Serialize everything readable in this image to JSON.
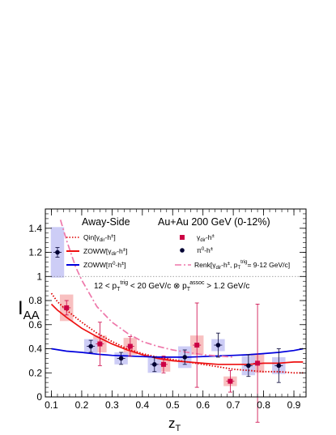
{
  "chart_data": {
    "type": "scatter",
    "xlabel": "z",
    "xlabel_sub": "T",
    "ylabel": "I",
    "ylabel_sub": "AA",
    "xlim": [
      0.08,
      0.94
    ],
    "ylim": [
      0,
      1.56
    ],
    "x_ticks": [
      "0.1",
      "0.2",
      "0.3",
      "0.4",
      "0.5",
      "0.6",
      "0.7",
      "0.8",
      "0.9"
    ],
    "y_ticks": [
      "0",
      "0.2",
      "0.4",
      "0.6",
      "0.8",
      "1",
      "1.2",
      "1.4"
    ],
    "reference_line": 1.0,
    "annotations": {
      "away_side": "Away-Side",
      "system": "Au+Au 200 GeV (0-12%)",
      "cut": "12 < p_T^trig < 20 GeV/c ⊗ p_T^assoc > 1.2 GeV/c"
    },
    "legend": {
      "qin": "Qin[γ_dir-h^±]",
      "zoww_gamma": "ZOWW[γ_dir-h^±]",
      "zoww_pi0": "ZOWW[π^0-h^±]",
      "renk": "Renk[γ_dir-h^±, p_T^trig= 9-12 GeV/c]",
      "gamma_data": "γ_dir-h^±",
      "pi0_data": "π^0-h^±"
    },
    "series": [
      {
        "name": "γ_dir-h^±",
        "color": "#cc0044",
        "box_color": "#f7b9b9",
        "marker": "square",
        "points": [
          {
            "x": 0.15,
            "y": 0.74,
            "stat": 0.06,
            "sys": 0.11
          },
          {
            "x": 0.26,
            "y": 0.44,
            "stat": 0.18,
            "sys": 0.07
          },
          {
            "x": 0.36,
            "y": 0.42,
            "stat": 0.08,
            "sys": 0.07
          },
          {
            "x": 0.47,
            "y": 0.27,
            "stat": 0.07,
            "sys": 0.06
          },
          {
            "x": 0.58,
            "y": 0.43,
            "stat": 0.35,
            "sys": 0.08
          },
          {
            "x": 0.69,
            "y": 0.13,
            "stat": 0.09,
            "sys": 0.04
          },
          {
            "x": 0.78,
            "y": 0.28,
            "stat": 0.49,
            "sys": 0.08
          }
        ]
      },
      {
        "name": "π^0-h^±",
        "color": "#000033",
        "box_color": "#c8c8f5",
        "marker": "circle",
        "points": [
          {
            "x": 0.12,
            "y": 1.2,
            "stat": 0.04,
            "sys": 0.21
          },
          {
            "x": 0.23,
            "y": 0.42,
            "stat": 0.05,
            "sys": 0.06
          },
          {
            "x": 0.33,
            "y": 0.32,
            "stat": 0.05,
            "sys": 0.05
          },
          {
            "x": 0.44,
            "y": 0.27,
            "stat": 0.06,
            "sys": 0.07
          },
          {
            "x": 0.54,
            "y": 0.33,
            "stat": 0.06,
            "sys": 0.09
          },
          {
            "x": 0.65,
            "y": 0.43,
            "stat": 0.1,
            "sys": 0.05
          },
          {
            "x": 0.75,
            "y": 0.26,
            "stat": 0.09,
            "sys": 0.08
          },
          {
            "x": 0.85,
            "y": 0.26,
            "stat": 0.14,
            "sys": 0.07
          }
        ]
      }
    ],
    "curves": [
      {
        "name": "Qin[γ_dir-h^±]",
        "color": "#dd0000",
        "style": "dotted",
        "x": [
          0.1,
          0.12,
          0.15,
          0.2,
          0.25,
          0.3,
          0.35,
          0.4,
          0.45,
          0.5,
          0.55,
          0.6,
          0.65,
          0.7,
          0.75,
          0.8,
          0.85,
          0.9,
          0.93
        ],
        "y": [
          0.86,
          0.79,
          0.72,
          0.62,
          0.53,
          0.46,
          0.4,
          0.36,
          0.33,
          0.31,
          0.29,
          0.27,
          0.25,
          0.23,
          0.22,
          0.21,
          0.21,
          0.2,
          0.2
        ]
      },
      {
        "name": "ZOWW[γ_dir-h^±]",
        "color": "#ee1111",
        "style": "solid",
        "x": [
          0.1,
          0.12,
          0.15,
          0.2,
          0.25,
          0.3,
          0.35,
          0.4,
          0.45,
          0.5,
          0.55,
          0.6,
          0.65,
          0.7,
          0.75,
          0.8,
          0.85,
          0.9,
          0.93
        ],
        "y": [
          0.77,
          0.72,
          0.66,
          0.57,
          0.5,
          0.44,
          0.39,
          0.35,
          0.32,
          0.3,
          0.29,
          0.28,
          0.27,
          0.27,
          0.27,
          0.28,
          0.28,
          0.29,
          0.29
        ]
      },
      {
        "name": "ZOWW[π^0-h^±]",
        "color": "#0000dd",
        "style": "solid",
        "x": [
          0.1,
          0.15,
          0.2,
          0.25,
          0.3,
          0.35,
          0.4,
          0.45,
          0.5,
          0.55,
          0.6,
          0.65,
          0.7,
          0.75,
          0.8,
          0.85,
          0.9,
          0.93
        ],
        "y": [
          0.4,
          0.38,
          0.37,
          0.355,
          0.345,
          0.34,
          0.335,
          0.33,
          0.33,
          0.33,
          0.335,
          0.34,
          0.345,
          0.35,
          0.36,
          0.37,
          0.385,
          0.4
        ]
      },
      {
        "name": "Renk[γ_dir-h^±, p_T^trig= 9-12 GeV/c]",
        "color": "#ee77aa",
        "style": "dashdot",
        "x": [
          0.13,
          0.15,
          0.18,
          0.2,
          0.25,
          0.3,
          0.35,
          0.4,
          0.45,
          0.5,
          0.55,
          0.6,
          0.65,
          0.7
        ],
        "y": [
          1.47,
          1.3,
          1.08,
          0.97,
          0.75,
          0.62,
          0.53,
          0.46,
          0.42,
          0.39,
          0.37,
          0.35,
          0.34,
          0.33
        ]
      }
    ]
  }
}
